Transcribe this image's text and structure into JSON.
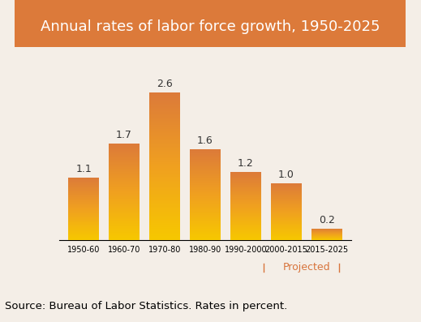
{
  "chart_data": {
    "type": "bar",
    "title": "Annual rates of labor force growth, 1950-2025",
    "categories": [
      "1950-60",
      "1960-70",
      "1970-80",
      "1980-90",
      "1990-2000",
      "2000-2015",
      "2015-2025"
    ],
    "values": [
      1.1,
      1.7,
      2.6,
      1.6,
      1.2,
      1.0,
      0.2
    ],
    "color": "#dc7a3a",
    "ylim": [
      0,
      3
    ],
    "data_labels": true,
    "tick_labels": "x",
    "annotation": "Projected",
    "source": "Source: Bureau of Labor Statistics. Rates in percent."
  }
}
